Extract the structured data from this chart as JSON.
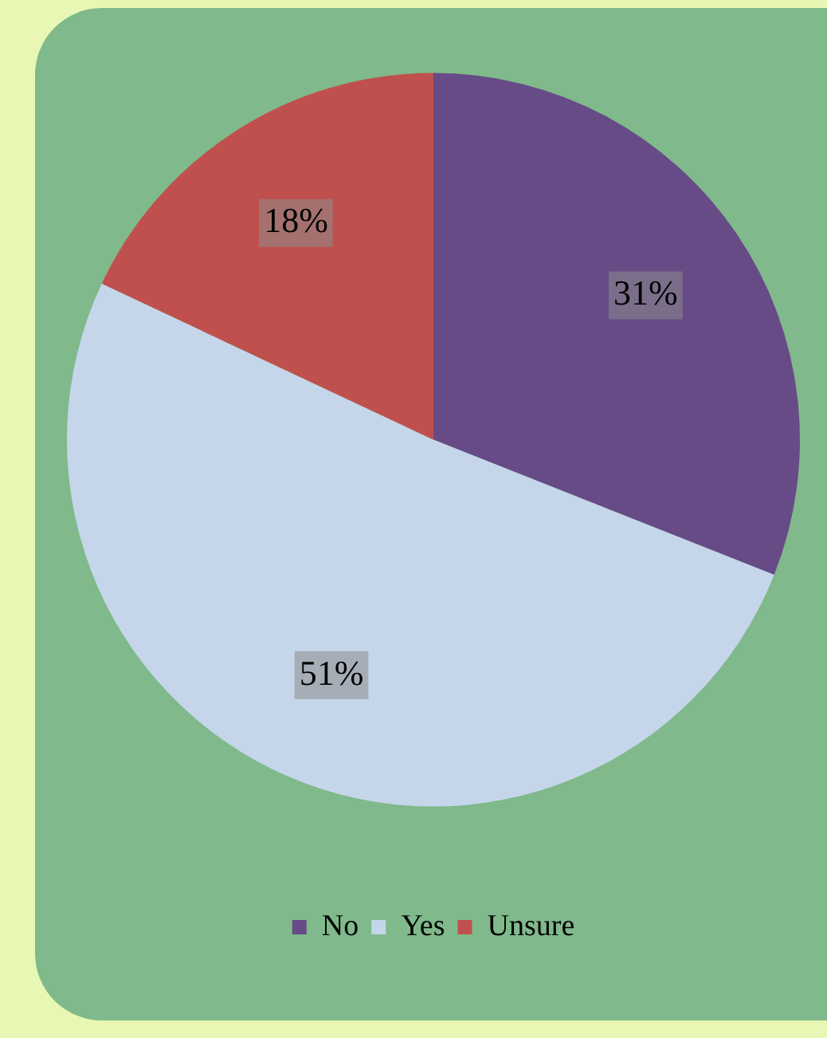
{
  "chart_data": {
    "type": "pie",
    "categories": [
      "No",
      "Yes",
      "Unsure"
    ],
    "values": [
      31,
      51,
      18
    ],
    "colors": [
      "#674b87",
      "#c5d6ea",
      "#c0504d"
    ],
    "value_labels": [
      "31%",
      "51%",
      "18%"
    ],
    "legend": "bottom"
  }
}
